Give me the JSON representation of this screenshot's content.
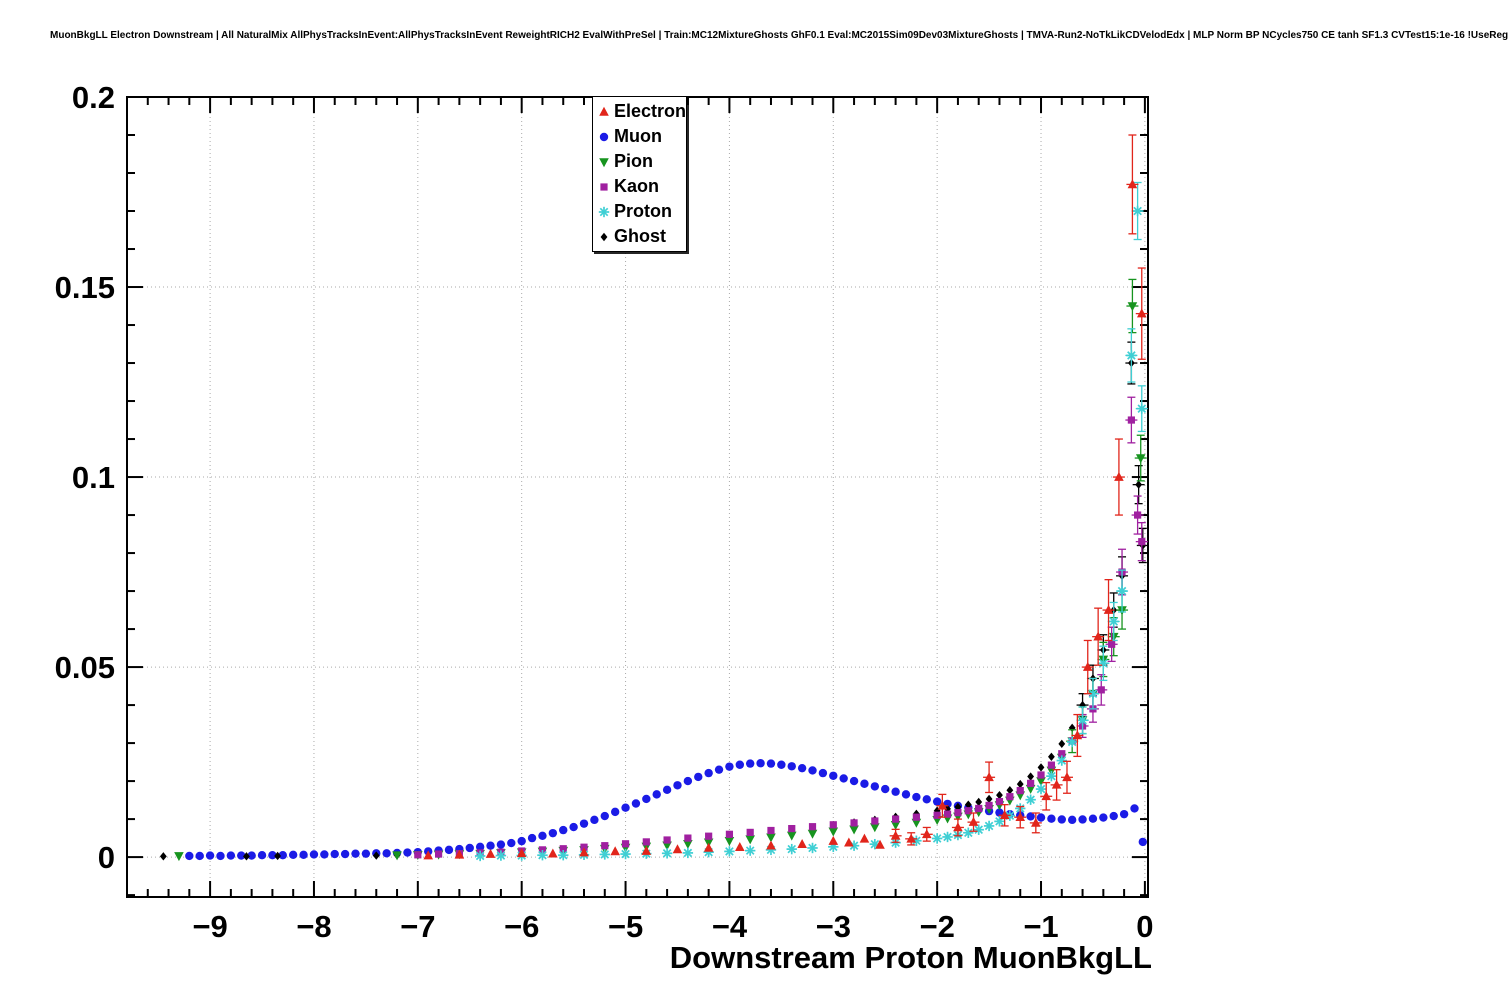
{
  "header": {
    "title": "MuonBkgLL Electron Downstream | All NaturalMix AllPhysTracksInEvent:AllPhysTracksInEvent ReweightRICH2 EvalWithPreSel | Train:MC12MixtureGhosts GhF0.1 Eval:MC2015Sim09Dev03MixtureGhosts | TMVA-Run2-NoTkLikCDVelodEdx | MLP Norm BP NCycles750 CE tanh SF1.3 CVTest15:1e-16 !UseReg"
  },
  "chart_data": {
    "type": "scatter",
    "title": "",
    "xlabel": "Downstream Proton MuonBkgLL",
    "ylabel": "",
    "xlim": [
      -9.8,
      0.03
    ],
    "ylim": [
      -0.0105,
      0.2
    ],
    "grid": true,
    "legend_position": "top-center",
    "style": {
      "grid_color": "#aaaaaa",
      "axis_color": "#000000",
      "background": "#ffffff"
    },
    "xticks": {
      "values": [
        -9,
        -8,
        -7,
        -6,
        -5,
        -4,
        -3,
        -2,
        -1,
        0
      ],
      "labels": [
        "−9",
        "−8",
        "−7",
        "−6",
        "−5",
        "−4",
        "−3",
        "−2",
        "−1",
        "0"
      ]
    },
    "yticks": {
      "values": [
        0,
        0.05,
        0.1,
        0.15,
        0.2
      ],
      "labels": [
        "0",
        "0.05",
        "0.1",
        "0.15",
        "0.2"
      ]
    },
    "draw_order": [
      1,
      5,
      2,
      3,
      4,
      0
    ],
    "series": [
      {
        "name": "Electron",
        "color": "#e1251b",
        "marker": "triangle-up",
        "x": [
          -6.9,
          -6.6,
          -6.3,
          -6.0,
          -5.7,
          -5.4,
          -5.1,
          -4.8,
          -4.5,
          -4.2,
          -3.9,
          -3.6,
          -3.3,
          -3.0,
          -2.85,
          -2.7,
          -2.55,
          -2.4,
          -2.25,
          -2.1,
          -1.95,
          -1.8,
          -1.65,
          -1.5,
          -1.35,
          -1.2,
          -1.05,
          -0.95,
          -0.85,
          -0.75,
          -0.65,
          -0.55,
          -0.45,
          -0.35,
          -0.25,
          -0.12,
          -0.03
        ],
        "y": [
          0.0004,
          0.0006,
          0.0008,
          0.001,
          0.0009,
          0.0012,
          0.0015,
          0.0016,
          0.002,
          0.0024,
          0.0026,
          0.003,
          0.0034,
          0.0042,
          0.0038,
          0.0048,
          0.0032,
          0.0056,
          0.0048,
          0.006,
          0.0135,
          0.0078,
          0.0092,
          0.021,
          0.011,
          0.0105,
          0.009,
          0.016,
          0.019,
          0.021,
          0.032,
          0.05,
          0.058,
          0.065,
          0.1,
          0.177,
          0.143
        ],
        "yerr": [
          0.0004,
          0.0005,
          0.0005,
          0.0006,
          0.0006,
          0.0007,
          0.0008,
          0.0008,
          0.0009,
          0.001,
          0.001,
          0.0011,
          0.0012,
          0.0014,
          0.0013,
          0.0015,
          0.0012,
          0.0017,
          0.0016,
          0.0018,
          0.003,
          0.0022,
          0.0024,
          0.004,
          0.0028,
          0.0028,
          0.0026,
          0.0036,
          0.004,
          0.0042,
          0.0055,
          0.007,
          0.0075,
          0.008,
          0.01,
          0.013,
          0.012
        ]
      },
      {
        "name": "Muon",
        "color": "#1b1be6",
        "marker": "circle",
        "x": [
          -9.2,
          -9.1,
          -9.0,
          -8.9,
          -8.8,
          -8.7,
          -8.6,
          -8.5,
          -8.4,
          -8.3,
          -8.2,
          -8.1,
          -8.0,
          -7.9,
          -7.8,
          -7.7,
          -7.6,
          -7.5,
          -7.4,
          -7.3,
          -7.2,
          -7.1,
          -7.0,
          -6.9,
          -6.8,
          -6.7,
          -6.6,
          -6.5,
          -6.4,
          -6.3,
          -6.2,
          -6.1,
          -6.0,
          -5.9,
          -5.8,
          -5.7,
          -5.6,
          -5.5,
          -5.4,
          -5.3,
          -5.2,
          -5.1,
          -5.0,
          -4.9,
          -4.8,
          -4.7,
          -4.6,
          -4.5,
          -4.4,
          -4.3,
          -4.2,
          -4.1,
          -4.0,
          -3.9,
          -3.8,
          -3.7,
          -3.6,
          -3.5,
          -3.4,
          -3.3,
          -3.2,
          -3.1,
          -3.0,
          -2.9,
          -2.8,
          -2.7,
          -2.6,
          -2.5,
          -2.4,
          -2.3,
          -2.2,
          -2.1,
          -2.0,
          -1.9,
          -1.8,
          -1.7,
          -1.6,
          -1.5,
          -1.4,
          -1.3,
          -1.2,
          -1.1,
          -1.0,
          -0.9,
          -0.8,
          -0.7,
          -0.6,
          -0.5,
          -0.4,
          -0.3,
          -0.2,
          -0.1,
          -0.02
        ],
        "y": [
          0.0003,
          0.0003,
          0.0004,
          0.0003,
          0.0004,
          0.0004,
          0.0004,
          0.0005,
          0.0005,
          0.0005,
          0.0006,
          0.0006,
          0.0007,
          0.0007,
          0.0008,
          0.0008,
          0.0009,
          0.0009,
          0.001,
          0.001,
          0.0011,
          0.0012,
          0.0013,
          0.0015,
          0.0017,
          0.0019,
          0.0021,
          0.0024,
          0.0027,
          0.003,
          0.0033,
          0.0037,
          0.0042,
          0.005,
          0.0056,
          0.0063,
          0.0071,
          0.0079,
          0.0088,
          0.0098,
          0.0108,
          0.0119,
          0.013,
          0.0141,
          0.0153,
          0.0165,
          0.0177,
          0.0189,
          0.02,
          0.0211,
          0.0221,
          0.023,
          0.0238,
          0.0243,
          0.0246,
          0.0247,
          0.0246,
          0.0243,
          0.0239,
          0.0234,
          0.0228,
          0.0221,
          0.0214,
          0.0207,
          0.02,
          0.0193,
          0.0186,
          0.0179,
          0.0172,
          0.0165,
          0.0158,
          0.0152,
          0.0146,
          0.014,
          0.0135,
          0.013,
          0.0125,
          0.0121,
          0.0117,
          0.0113,
          0.011,
          0.0107,
          0.0104,
          0.0101,
          0.0099,
          0.0098,
          0.0099,
          0.0101,
          0.0104,
          0.0108,
          0.0113,
          0.0128,
          0.004
        ]
      },
      {
        "name": "Pion",
        "color": "#17941f",
        "marker": "triangle-down",
        "x": [
          -9.3,
          -7.2,
          -7.0,
          -6.8,
          -6.6,
          -6.4,
          -6.2,
          -6.0,
          -5.8,
          -5.6,
          -5.4,
          -5.2,
          -5.0,
          -4.8,
          -4.6,
          -4.4,
          -4.2,
          -4.0,
          -3.8,
          -3.6,
          -3.4,
          -3.2,
          -3.0,
          -2.8,
          -2.6,
          -2.4,
          -2.2,
          -2.0,
          -1.9,
          -1.8,
          -1.7,
          -1.6,
          -1.5,
          -1.4,
          -1.3,
          -1.2,
          -1.1,
          -1.0,
          -0.9,
          -0.8,
          -0.7,
          -0.6,
          -0.5,
          -0.4,
          -0.3,
          -0.22,
          -0.12,
          -0.04
        ],
        "y": [
          0.0003,
          0.0005,
          0.0006,
          0.0007,
          0.0008,
          0.0009,
          0.0011,
          0.0013,
          0.0015,
          0.0017,
          0.0019,
          0.0022,
          0.0025,
          0.0028,
          0.0031,
          0.0035,
          0.0039,
          0.0043,
          0.0047,
          0.0052,
          0.0057,
          0.0062,
          0.0068,
          0.0073,
          0.0079,
          0.0085,
          0.0091,
          0.0098,
          0.0102,
          0.0107,
          0.0113,
          0.0119,
          0.0127,
          0.0137,
          0.0149,
          0.0163,
          0.018,
          0.02,
          0.0228,
          0.0262,
          0.0305,
          0.036,
          0.043,
          0.052,
          0.058,
          0.065,
          0.145,
          0.105
        ],
        "yerr_start": 40,
        "yerr_values": [
          0.003,
          0.0035,
          0.004,
          0.0045,
          0.005,
          0.005,
          0.007,
          0.006
        ]
      },
      {
        "name": "Kaon",
        "color": "#a020a0",
        "marker": "square",
        "x": [
          -7.0,
          -6.8,
          -6.6,
          -6.4,
          -6.2,
          -6.0,
          -5.8,
          -5.6,
          -5.4,
          -5.2,
          -5.0,
          -4.8,
          -4.6,
          -4.4,
          -4.2,
          -4.0,
          -3.8,
          -3.6,
          -3.4,
          -3.2,
          -3.0,
          -2.8,
          -2.6,
          -2.4,
          -2.2,
          -2.0,
          -1.9,
          -1.8,
          -1.7,
          -1.6,
          -1.5,
          -1.4,
          -1.3,
          -1.2,
          -1.1,
          -1.0,
          -0.9,
          -0.8,
          -0.7,
          -0.6,
          -0.5,
          -0.42,
          -0.32,
          -0.22,
          -0.13,
          -0.07,
          -0.03
        ],
        "y": [
          0.0006,
          0.0008,
          0.0009,
          0.0011,
          0.0013,
          0.0016,
          0.0019,
          0.0022,
          0.0026,
          0.003,
          0.0035,
          0.004,
          0.0045,
          0.005,
          0.0055,
          0.006,
          0.0065,
          0.007,
          0.0075,
          0.008,
          0.0085,
          0.009,
          0.0095,
          0.01,
          0.0105,
          0.011,
          0.0113,
          0.0117,
          0.0122,
          0.0128,
          0.0136,
          0.0146,
          0.0159,
          0.0175,
          0.0194,
          0.0216,
          0.0242,
          0.0272,
          0.0306,
          0.0345,
          0.039,
          0.044,
          0.056,
          0.075,
          0.115,
          0.09,
          0.083
        ],
        "yerr_start": 39,
        "yerr_values": [
          0.003,
          0.0035,
          0.004,
          0.0045,
          0.006,
          0.006,
          0.005,
          0.005
        ]
      },
      {
        "name": "Proton",
        "color": "#3fcfd4",
        "marker": "star",
        "x": [
          -6.4,
          -6.2,
          -6.0,
          -5.8,
          -5.6,
          -5.4,
          -5.2,
          -5.0,
          -4.8,
          -4.6,
          -4.4,
          -4.2,
          -4.0,
          -3.8,
          -3.6,
          -3.4,
          -3.2,
          -3.0,
          -2.8,
          -2.6,
          -2.4,
          -2.2,
          -2.0,
          -1.9,
          -1.8,
          -1.7,
          -1.6,
          -1.5,
          -1.4,
          -1.3,
          -1.2,
          -1.1,
          -1.0,
          -0.9,
          -0.8,
          -0.7,
          -0.6,
          -0.5,
          -0.4,
          -0.3,
          -0.22,
          -0.13,
          -0.07,
          -0.03
        ],
        "y": [
          0.0003,
          0.0004,
          0.0004,
          0.0005,
          0.0005,
          0.0006,
          0.0007,
          0.0008,
          0.0009,
          0.001,
          0.0011,
          0.0013,
          0.0015,
          0.0017,
          0.0019,
          0.0021,
          0.0024,
          0.0027,
          0.003,
          0.0034,
          0.0038,
          0.0043,
          0.0049,
          0.0053,
          0.0058,
          0.0064,
          0.0072,
          0.0082,
          0.0094,
          0.0109,
          0.0128,
          0.0151,
          0.0179,
          0.0213,
          0.0254,
          0.0303,
          0.036,
          0.043,
          0.051,
          0.062,
          0.07,
          0.132,
          0.17,
          0.118
        ],
        "yerr_start": 36,
        "yerr_values": [
          0.0035,
          0.004,
          0.0045,
          0.005,
          0.0055,
          0.007,
          0.0075,
          0.006
        ]
      },
      {
        "name": "Ghost",
        "color": "#000000",
        "marker": "diamond",
        "x": [
          -9.45,
          -8.65,
          -8.35,
          -7.4,
          -7.2,
          -7.0,
          -6.8,
          -6.6,
          -6.4,
          -6.2,
          -6.0,
          -5.8,
          -5.6,
          -5.4,
          -5.2,
          -5.0,
          -4.8,
          -4.6,
          -4.4,
          -4.2,
          -4.0,
          -3.8,
          -3.6,
          -3.4,
          -3.2,
          -3.0,
          -2.8,
          -2.6,
          -2.4,
          -2.2,
          -2.0,
          -1.9,
          -1.8,
          -1.7,
          -1.6,
          -1.5,
          -1.4,
          -1.3,
          -1.2,
          -1.1,
          -1.0,
          -0.9,
          -0.8,
          -0.7,
          -0.6,
          -0.5,
          -0.4,
          -0.3,
          -0.22,
          -0.13,
          -0.06,
          -0.02
        ],
        "y": [
          0.0002,
          0.0002,
          0.0003,
          0.0004,
          0.0005,
          0.0006,
          0.0007,
          0.0008,
          0.001,
          0.0012,
          0.0014,
          0.0016,
          0.0019,
          0.0022,
          0.0025,
          0.0029,
          0.0033,
          0.0037,
          0.0042,
          0.0047,
          0.0052,
          0.0058,
          0.0064,
          0.007,
          0.0077,
          0.0084,
          0.0091,
          0.0098,
          0.0106,
          0.0114,
          0.0122,
          0.0127,
          0.0132,
          0.0138,
          0.0145,
          0.0153,
          0.0163,
          0.0176,
          0.0192,
          0.0212,
          0.0236,
          0.0264,
          0.0298,
          0.034,
          0.04,
          0.047,
          0.0545,
          0.065,
          0.074,
          0.13,
          0.098,
          0.082
        ],
        "yerr_start": 44,
        "yerr_values": [
          0.003,
          0.0035,
          0.004,
          0.0045,
          0.005,
          0.0055,
          0.005,
          0.0045
        ]
      }
    ]
  }
}
